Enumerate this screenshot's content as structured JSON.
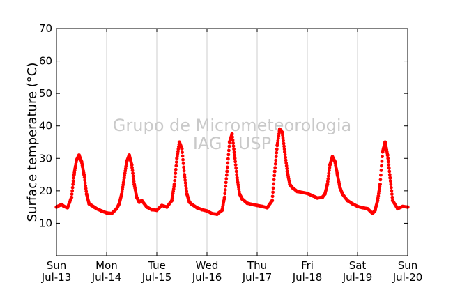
{
  "chart_data": {
    "type": "scatter",
    "ylabel": "Surface temperature (°C)",
    "xlabel": "",
    "ylim": [
      0,
      70
    ],
    "xlim": [
      0,
      7
    ],
    "yticks": [
      10,
      20,
      30,
      40,
      50,
      60,
      70
    ],
    "ytick_labels": [
      "10",
      "20",
      "30",
      "40",
      "50",
      "60",
      "70"
    ],
    "xtick_labels": [
      {
        "day": "Sun",
        "date": "Jul-13"
      },
      {
        "day": "Mon",
        "date": "Jul-14"
      },
      {
        "day": "Tue",
        "date": "Jul-15"
      },
      {
        "day": "Wed",
        "date": "Jul-16"
      },
      {
        "day": "Thu",
        "date": "Jul-17"
      },
      {
        "day": "Fri",
        "date": "Jul-18"
      },
      {
        "day": "Sat",
        "date": "Jul-19"
      },
      {
        "day": "Sun",
        "date": "Jul-20"
      }
    ],
    "grid": "vertical",
    "watermark": [
      "Grupo de Micrometeorologia",
      "IAG / USP"
    ],
    "series": [
      {
        "color": "#ff0000",
        "marker": "dot",
        "x": [
          0.0,
          0.1,
          0.15,
          0.22,
          0.3,
          0.35,
          0.4,
          0.45,
          0.5,
          0.55,
          0.6,
          0.65,
          0.7,
          0.75,
          0.8,
          0.9,
          1.0,
          1.1,
          1.2,
          1.25,
          1.3,
          1.35,
          1.4,
          1.45,
          1.5,
          1.55,
          1.6,
          1.65,
          1.7,
          1.8,
          1.9,
          2.0,
          2.1,
          2.2,
          2.3,
          2.35,
          2.4,
          2.45,
          2.5,
          2.55,
          2.6,
          2.65,
          2.7,
          2.8,
          2.9,
          3.0,
          3.1,
          3.2,
          3.3,
          3.35,
          3.4,
          3.45,
          3.5,
          3.55,
          3.6,
          3.65,
          3.7,
          3.8,
          3.9,
          4.0,
          4.1,
          4.2,
          4.3,
          4.35,
          4.4,
          4.45,
          4.5,
          4.55,
          4.6,
          4.65,
          4.7,
          4.8,
          4.9,
          5.0,
          5.1,
          5.2,
          5.3,
          5.35,
          5.4,
          5.45,
          5.5,
          5.55,
          5.6,
          5.65,
          5.7,
          5.8,
          5.9,
          6.0,
          6.1,
          6.2,
          6.3,
          6.35,
          6.4,
          6.45,
          6.5,
          6.55,
          6.6,
          6.65,
          6.7,
          6.8,
          6.9,
          7.0
        ],
        "y": [
          15.0,
          15.8,
          15.2,
          14.8,
          18.0,
          25.0,
          29.5,
          31.0,
          29.0,
          25.0,
          19.0,
          16.0,
          15.5,
          15.0,
          14.5,
          13.8,
          13.2,
          13.0,
          14.5,
          16.0,
          19.0,
          24.0,
          29.0,
          31.0,
          28.0,
          22.0,
          18.0,
          16.5,
          17.0,
          15.0,
          14.2,
          14.0,
          15.5,
          15.0,
          17.0,
          22.0,
          30.0,
          35.0,
          33.0,
          25.0,
          19.0,
          16.5,
          15.8,
          14.8,
          14.2,
          13.8,
          13.0,
          12.8,
          14.0,
          18.0,
          26.0,
          35.0,
          37.5,
          31.0,
          24.0,
          19.0,
          17.5,
          16.2,
          15.8,
          15.5,
          15.2,
          14.8,
          17.0,
          26.0,
          34.0,
          39.0,
          38.0,
          32.0,
          26.0,
          22.0,
          21.0,
          19.8,
          19.5,
          19.2,
          18.5,
          17.8,
          18.0,
          19.0,
          22.0,
          28.0,
          30.5,
          29.0,
          25.0,
          21.0,
          19.0,
          17.0,
          16.0,
          15.2,
          14.8,
          14.5,
          13.0,
          14.0,
          17.0,
          22.0,
          32.0,
          35.0,
          31.0,
          24.0,
          17.0,
          14.5,
          15.2,
          15.0
        ]
      }
    ]
  }
}
